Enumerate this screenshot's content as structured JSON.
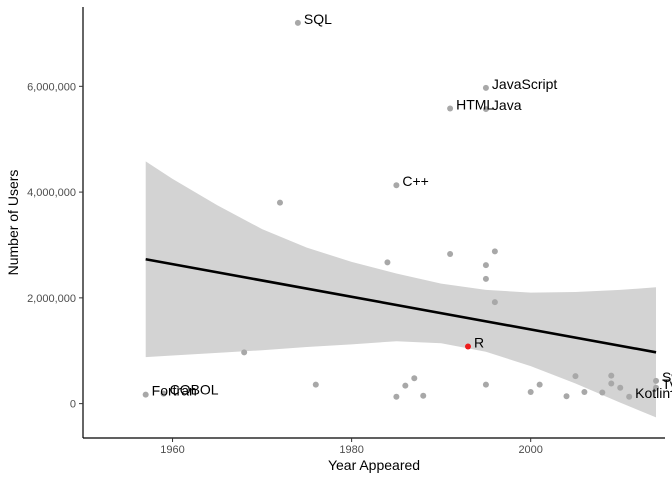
{
  "chart_data": {
    "type": "scatter",
    "title": "",
    "xlabel": "Year Appeared",
    "ylabel": "Number of Users",
    "xlim": [
      1950,
      2015
    ],
    "ylim": [
      -650000,
      7500000
    ],
    "x_ticks": [
      1960,
      1980,
      2000
    ],
    "y_ticks": [
      0,
      2000000,
      4000000,
      6000000
    ],
    "x_tick_labels": [
      "1960",
      "1980",
      "2000"
    ],
    "y_tick_labels": [
      "0",
      "2,000,000",
      "4,000,000",
      "6,000,000"
    ],
    "grid": false,
    "legend": "none",
    "colors": {
      "point": "#a8a8a8",
      "highlight": "#ee1c1c",
      "trend": "#000000",
      "band": "#d3d3d3"
    },
    "points": [
      {
        "x": 1957,
        "y": 170000,
        "label": "Fortran"
      },
      {
        "x": 1959,
        "y": 190000,
        "label": "COBOL"
      },
      {
        "x": 1968,
        "y": 970000
      },
      {
        "x": 1972,
        "y": 3800000
      },
      {
        "x": 1974,
        "y": 7200000,
        "label": "SQL"
      },
      {
        "x": 1976,
        "y": 360000
      },
      {
        "x": 1984,
        "y": 2670000
      },
      {
        "x": 1985,
        "y": 130000
      },
      {
        "x": 1985,
        "y": 4130000,
        "label": "C++"
      },
      {
        "x": 1986,
        "y": 340000
      },
      {
        "x": 1987,
        "y": 480000
      },
      {
        "x": 1988,
        "y": 150000
      },
      {
        "x": 1991,
        "y": 5580000,
        "label": "HTML"
      },
      {
        "x": 1991,
        "y": 2830000
      },
      {
        "x": 1993,
        "y": 1080000,
        "label": "R",
        "highlight": true
      },
      {
        "x": 1995,
        "y": 5970000,
        "label": "JavaScript"
      },
      {
        "x": 1995,
        "y": 5570000,
        "label": "Java"
      },
      {
        "x": 1995,
        "y": 2620000
      },
      {
        "x": 1995,
        "y": 2360000
      },
      {
        "x": 1995,
        "y": 360000
      },
      {
        "x": 1996,
        "y": 2880000
      },
      {
        "x": 1996,
        "y": 1920000
      },
      {
        "x": 2000,
        "y": 220000
      },
      {
        "x": 2001,
        "y": 360000
      },
      {
        "x": 2004,
        "y": 140000
      },
      {
        "x": 2005,
        "y": 520000
      },
      {
        "x": 2006,
        "y": 220000
      },
      {
        "x": 2008,
        "y": 210000
      },
      {
        "x": 2009,
        "y": 530000
      },
      {
        "x": 2009,
        "y": 380000
      },
      {
        "x": 2010,
        "y": 300000
      },
      {
        "x": 2011,
        "y": 130000,
        "label": "Kotlin"
      },
      {
        "x": 2014,
        "y": 300000,
        "label": "TypeScript"
      },
      {
        "x": 2014,
        "y": 430000,
        "label": "Swift"
      }
    ],
    "trend_line": {
      "x": [
        1957,
        2014
      ],
      "y": [
        2730000,
        970000
      ]
    },
    "confidence_band": {
      "x": [
        1957,
        1960,
        1965,
        1970,
        1975,
        1980,
        1985,
        1990,
        1995,
        2000,
        2005,
        2010,
        2014
      ],
      "upper": [
        4580000,
        4250000,
        3750000,
        3300000,
        2950000,
        2680000,
        2460000,
        2270000,
        2150000,
        2100000,
        2110000,
        2150000,
        2200000
      ],
      "lower": [
        880000,
        910000,
        960000,
        1010000,
        1070000,
        1120000,
        1180000,
        1140000,
        980000,
        710000,
        380000,
        20000,
        -260000
      ]
    }
  }
}
